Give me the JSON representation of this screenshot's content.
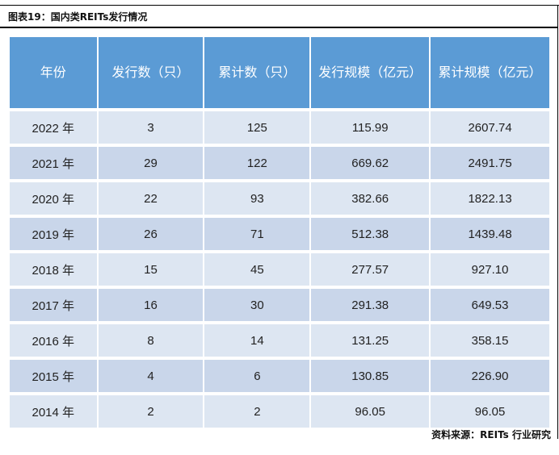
{
  "title": "图表19：国内类REITs发行情况",
  "headers": [
    "年份",
    "发行数（只）",
    "累计数（只）",
    "发行规模（亿元）",
    "累计规模（亿元）"
  ],
  "rows": [
    [
      "2022 年",
      "3",
      "125",
      "115.99",
      "2607.74"
    ],
    [
      "2021 年",
      "29",
      "122",
      "669.62",
      "2491.75"
    ],
    [
      "2020 年",
      "22",
      "93",
      "382.66",
      "1822.13"
    ],
    [
      "2019 年",
      "26",
      "71",
      "512.38",
      "1439.48"
    ],
    [
      "2018 年",
      "15",
      "45",
      "277.57",
      "927.10"
    ],
    [
      "2017 年",
      "16",
      "30",
      "291.38",
      "649.53"
    ],
    [
      "2016 年",
      "8",
      "14",
      "131.25",
      "358.15"
    ],
    [
      "2015 年",
      "4",
      "6",
      "130.85",
      "226.90"
    ],
    [
      "2014 年",
      "2",
      "2",
      "96.05",
      "96.05"
    ]
  ],
  "source": "资料来源：REITs 行业研究"
}
